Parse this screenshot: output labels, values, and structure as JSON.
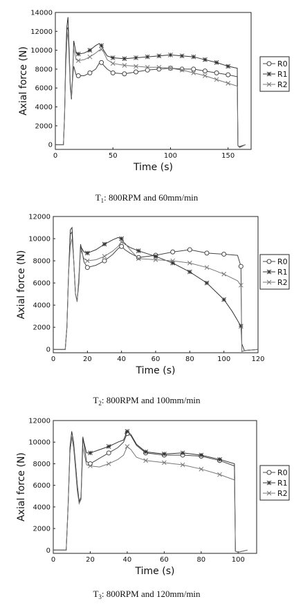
{
  "chart_data": [
    {
      "type": "line",
      "caption": {
        "main": "T",
        "sub": "1",
        "rest": ": 800RPM and 60mm/min"
      },
      "xlabel": "Time (s)",
      "ylabel": "Axial force (N)",
      "xlim": [
        0,
        170
      ],
      "ylim": [
        -500,
        14000
      ],
      "xticks": [
        0,
        50,
        100,
        150
      ],
      "yticks": [
        0,
        2000,
        4000,
        6000,
        8000,
        10000,
        12000,
        14000
      ],
      "legend": "right",
      "series": [
        {
          "name": "R0",
          "marker": "circle",
          "color": "#444444",
          "x": [
            0,
            7,
            8,
            9,
            10,
            11,
            12,
            13,
            14,
            15,
            16,
            18,
            20,
            25,
            30,
            35,
            38,
            40,
            42,
            45,
            50,
            60,
            70,
            80,
            90,
            100,
            110,
            120,
            130,
            140,
            150,
            158,
            158.5,
            160,
            165
          ],
          "y": [
            0,
            0,
            3000,
            9000,
            12200,
            12400,
            9500,
            6500,
            5000,
            7000,
            8300,
            7400,
            7300,
            7300,
            7600,
            8000,
            8600,
            8700,
            8400,
            8000,
            7600,
            7500,
            7700,
            7900,
            8000,
            8100,
            8000,
            8000,
            7800,
            7600,
            7400,
            7200,
            -100,
            -300,
            0
          ]
        },
        {
          "name": "R1",
          "marker": "star",
          "color": "#333333",
          "x": [
            0,
            7,
            8,
            9,
            10,
            11,
            12,
            13,
            14,
            15,
            16,
            18,
            20,
            25,
            30,
            35,
            38,
            40,
            42,
            45,
            50,
            60,
            70,
            80,
            90,
            100,
            110,
            120,
            130,
            140,
            150,
            158,
            158.5,
            160,
            165
          ],
          "y": [
            0,
            0,
            3000,
            9000,
            12500,
            13500,
            10000,
            6000,
            4800,
            7500,
            11000,
            9700,
            9600,
            9700,
            10000,
            10500,
            10700,
            10500,
            10000,
            9400,
            9200,
            9100,
            9200,
            9300,
            9400,
            9500,
            9400,
            9300,
            9000,
            8700,
            8300,
            8100,
            -100,
            -200,
            0
          ]
        },
        {
          "name": "R2",
          "marker": "x",
          "color": "#777777",
          "x": [
            0,
            7,
            8,
            9,
            10,
            11,
            12,
            13,
            14,
            15,
            16,
            18,
            20,
            25,
            30,
            35,
            38,
            40,
            42,
            45,
            50,
            60,
            70,
            80,
            90,
            100,
            110,
            120,
            130,
            140,
            150,
            158,
            158.5,
            160,
            165
          ],
          "y": [
            0,
            0,
            3000,
            8000,
            11000,
            12000,
            9000,
            6000,
            5000,
            7500,
            10200,
            9000,
            8900,
            9000,
            9300,
            9700,
            10000,
            10100,
            9800,
            9000,
            8600,
            8400,
            8300,
            8200,
            8200,
            8100,
            7900,
            7600,
            7300,
            6900,
            6500,
            6200,
            -100,
            -300,
            0
          ]
        }
      ]
    },
    {
      "type": "line",
      "caption": {
        "main": "T",
        "sub": "2",
        "rest": ": 800RPM and 100mm/min"
      },
      "xlabel": "Time (s)",
      "ylabel": "Axial force (N)",
      "xlim": [
        0,
        120
      ],
      "ylim": [
        -300,
        12000
      ],
      "xticks": [
        0,
        20,
        40,
        60,
        80,
        100,
        120
      ],
      "yticks": [
        0,
        2000,
        4000,
        6000,
        8000,
        10000,
        12000
      ],
      "legend": "right",
      "series": [
        {
          "name": "R0",
          "marker": "circle",
          "color": "#444444",
          "x": [
            0,
            7,
            8,
            9,
            10,
            11,
            12,
            13,
            14,
            15,
            16,
            18,
            20,
            25,
            30,
            35,
            38,
            40,
            42,
            45,
            50,
            60,
            70,
            80,
            90,
            100,
            108,
            110,
            110.5,
            112,
            120
          ],
          "y": [
            0,
            0,
            2000,
            7000,
            10400,
            10600,
            8000,
            5000,
            4300,
            6500,
            9500,
            7900,
            7400,
            7600,
            8000,
            8600,
            9100,
            9300,
            9000,
            8700,
            8300,
            8500,
            8800,
            9000,
            8700,
            8600,
            8500,
            7500,
            -200,
            -100,
            0
          ]
        },
        {
          "name": "R1",
          "marker": "star",
          "color": "#333333",
          "x": [
            0,
            7,
            8,
            9,
            10,
            11,
            12,
            13,
            14,
            15,
            16,
            18,
            20,
            25,
            30,
            35,
            38,
            40,
            42,
            45,
            50,
            60,
            70,
            80,
            90,
            100,
            105,
            110,
            110.5,
            112,
            120
          ],
          "y": [
            0,
            0,
            2000,
            7000,
            10800,
            11000,
            8000,
            5000,
            4400,
            6000,
            9300,
            8800,
            8700,
            9000,
            9500,
            9900,
            10100,
            10000,
            9500,
            9200,
            8900,
            8400,
            7800,
            7000,
            6000,
            4500,
            3400,
            2100,
            500,
            -100,
            0
          ]
        },
        {
          "name": "R2",
          "marker": "x",
          "color": "#777777",
          "x": [
            0,
            7,
            8,
            9,
            10,
            11,
            12,
            13,
            14,
            15,
            16,
            18,
            20,
            25,
            30,
            35,
            38,
            40,
            42,
            45,
            50,
            60,
            70,
            80,
            90,
            100,
            108,
            110,
            110.5,
            112,
            120
          ],
          "y": [
            0,
            0,
            2000,
            7000,
            9400,
            10000,
            8000,
            5000,
            4300,
            6500,
            9000,
            8200,
            8000,
            8100,
            8400,
            8900,
            9300,
            9700,
            9600,
            9000,
            8200,
            8100,
            8000,
            7800,
            7400,
            6800,
            6200,
            5800,
            -200,
            -100,
            0
          ]
        }
      ]
    },
    {
      "type": "line",
      "caption": {
        "main": "T",
        "sub": "3",
        "rest": ": 800RPM and 120mm/min"
      },
      "xlabel": "Time (s)",
      "ylabel": "Axial force (N)",
      "xlim": [
        0,
        110
      ],
      "ylim": [
        -300,
        12000
      ],
      "xticks": [
        0,
        20,
        40,
        60,
        80,
        100
      ],
      "yticks": [
        0,
        2000,
        4000,
        6000,
        8000,
        10000,
        12000
      ],
      "legend": "right",
      "series": [
        {
          "name": "R0",
          "marker": "circle",
          "color": "#444444",
          "x": [
            0,
            7,
            8,
            9,
            10,
            11,
            12,
            13,
            14,
            15,
            16,
            18,
            20,
            25,
            30,
            35,
            38,
            40,
            42,
            45,
            50,
            60,
            70,
            80,
            90,
            98,
            98.5,
            100,
            105
          ],
          "y": [
            0,
            0,
            4000,
            9000,
            10500,
            9500,
            8000,
            6000,
            4400,
            4700,
            10500,
            8200,
            8000,
            8500,
            9000,
            9500,
            10000,
            10800,
            10600,
            9700,
            9000,
            8800,
            8800,
            8700,
            8300,
            7800,
            -100,
            -200,
            0
          ]
        },
        {
          "name": "R1",
          "marker": "star",
          "color": "#333333",
          "x": [
            0,
            7,
            8,
            9,
            10,
            11,
            12,
            13,
            14,
            15,
            16,
            18,
            20,
            25,
            30,
            35,
            38,
            40,
            42,
            45,
            50,
            60,
            70,
            80,
            90,
            98,
            98.5,
            100,
            105
          ],
          "y": [
            0,
            0,
            4000,
            9500,
            11000,
            10000,
            8000,
            6000,
            4500,
            4900,
            10400,
            9000,
            9000,
            9300,
            9600,
            10000,
            10200,
            11000,
            10700,
            9800,
            9100,
            8900,
            9000,
            8800,
            8400,
            8000,
            -100,
            -200,
            0
          ]
        },
        {
          "name": "R2",
          "marker": "x",
          "color": "#777777",
          "x": [
            0,
            7,
            8,
            9,
            10,
            11,
            12,
            13,
            14,
            15,
            16,
            18,
            20,
            25,
            30,
            35,
            38,
            40,
            42,
            45,
            50,
            60,
            70,
            80,
            90,
            98,
            98.5,
            100,
            105
          ],
          "y": [
            0,
            0,
            4000,
            9000,
            10500,
            9500,
            7500,
            5500,
            4300,
            4700,
            9500,
            7900,
            7800,
            7700,
            8000,
            8400,
            8800,
            9600,
            9300,
            8600,
            8300,
            8100,
            7900,
            7500,
            7000,
            6500,
            -100,
            -200,
            0
          ]
        }
      ]
    }
  ]
}
